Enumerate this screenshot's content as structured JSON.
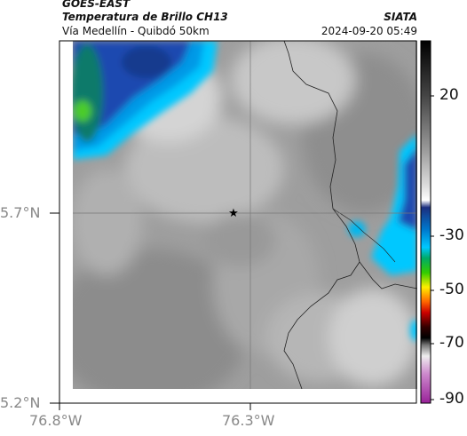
{
  "header": {
    "title_line1": "GOES-EAST",
    "title_line2": "Temperatura de Brillo CH13",
    "subtitle": "Vía Medellín - Quibdó 50km",
    "organization": "SIATA",
    "timestamp": "2024-09-20 05:49"
  },
  "map": {
    "lat_labels": [
      "5.7°N",
      "5.2°N"
    ],
    "lon_labels": [
      "76.8°W",
      "76.3°W"
    ],
    "marker_icon": "star-icon"
  },
  "colorbar": {
    "tick_labels": [
      "20",
      "-30",
      "-50",
      "-70",
      "-90"
    ],
    "colors": [
      "#000000",
      "#555555",
      "#aaaaaa",
      "#ffffff",
      "#1a3a8a",
      "#00aaff",
      "#00cc44",
      "#ffee00",
      "#ff4400",
      "#880000",
      "#cc66cc"
    ]
  }
}
